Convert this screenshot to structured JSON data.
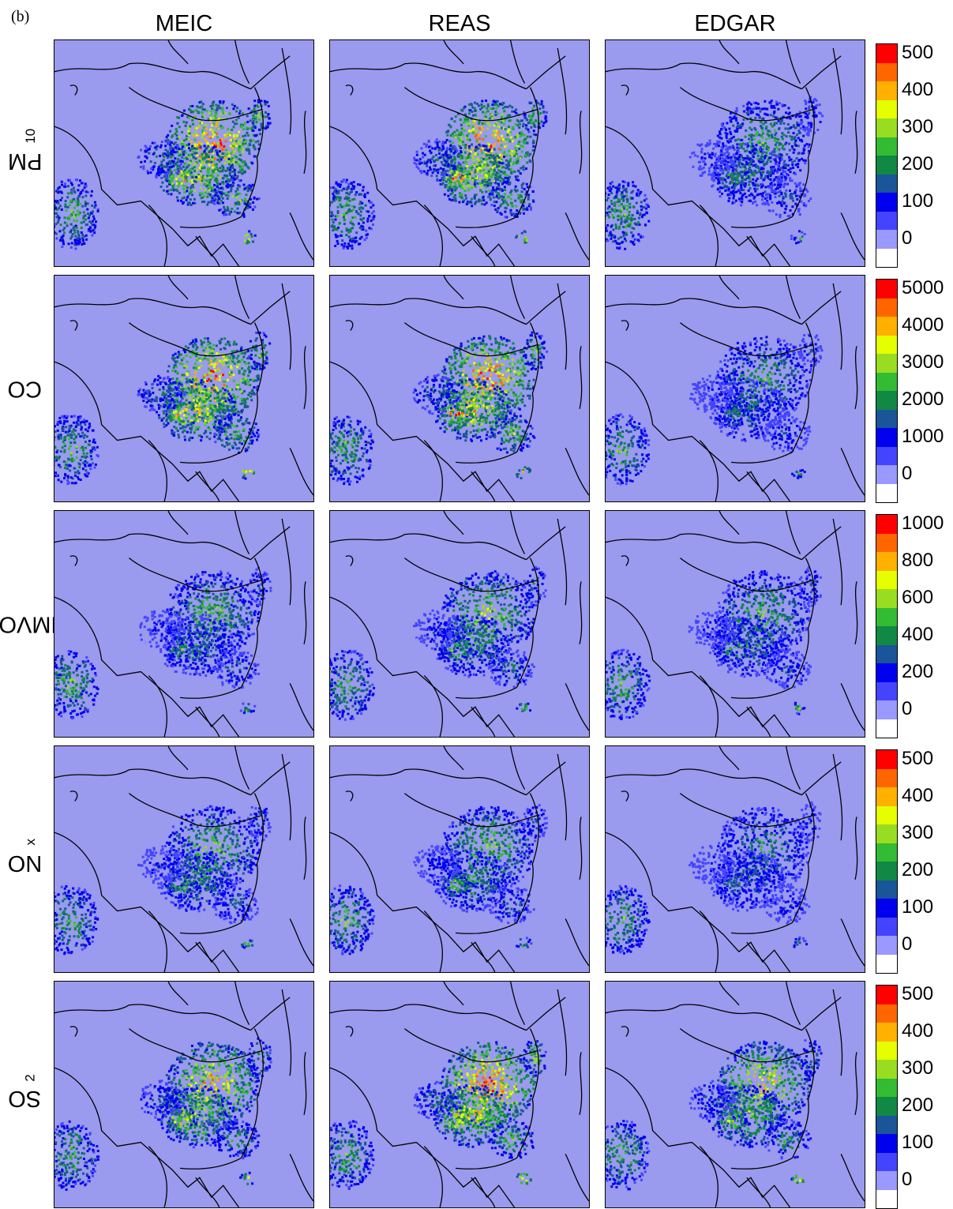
{
  "figure": {
    "panel_label": "(b)",
    "columns": [
      "MEIC",
      "REAS",
      "EDGAR"
    ],
    "rows": [
      {
        "name": "PM",
        "sub": "10",
        "ticks": [
          "500",
          "400",
          "300",
          "200",
          "100",
          "0"
        ]
      },
      {
        "name": "CO",
        "sub": "",
        "ticks": [
          "5000",
          "4000",
          "3000",
          "2000",
          "1000",
          "0"
        ]
      },
      {
        "name": "NMVOC",
        "sub": "",
        "ticks": [
          "1000",
          "800",
          "600",
          "400",
          "200",
          "0"
        ]
      },
      {
        "name": "NO",
        "sub": "x",
        "ticks": [
          "500",
          "400",
          "300",
          "200",
          "100",
          "0"
        ]
      },
      {
        "name": "SO",
        "sub": "2",
        "ticks": [
          "500",
          "400",
          "300",
          "200",
          "100",
          "0"
        ]
      }
    ]
  },
  "colorbar_colors": [
    "#ff0000",
    "#ff6600",
    "#ffb000",
    "#e6ff00",
    "#99dd22",
    "#33bb33",
    "#118844",
    "#1a5599",
    "#0000ee",
    "#4444ff",
    "#9999ff",
    "#ffffff"
  ],
  "map_colors": {
    "ocean": "#9a9aee",
    "border": "#000000"
  }
}
